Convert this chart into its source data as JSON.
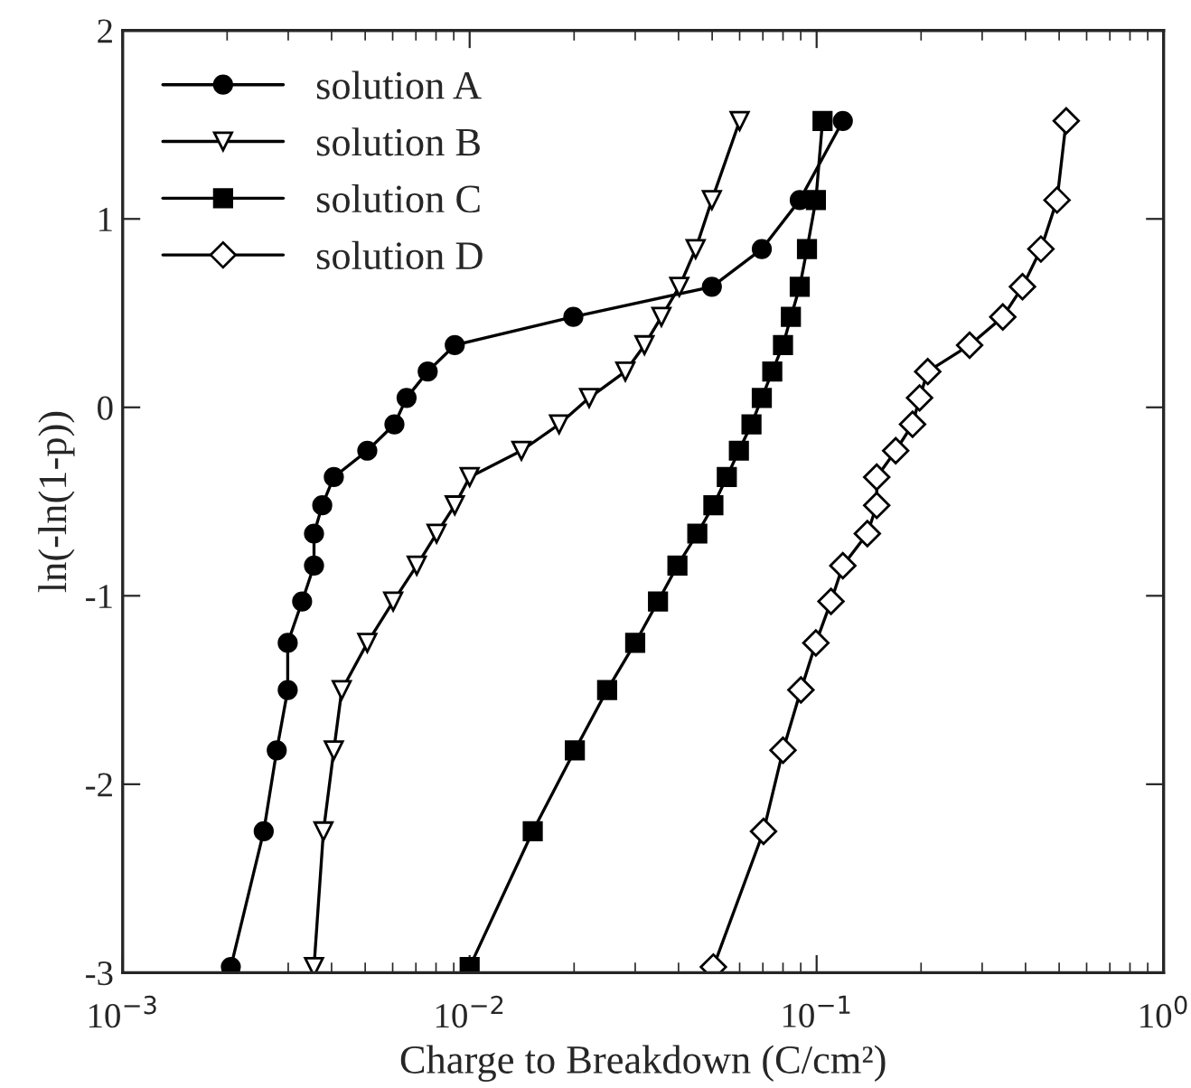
{
  "chart_data": {
    "type": "line",
    "xlabel": "Charge to Breakdown (C/cm²)",
    "ylabel": "ln(-ln(1-p))",
    "log": "x",
    "xlim": [
      0.001,
      1
    ],
    "xticks": [
      {
        "value": 0.001,
        "label": "10$^{−3}$"
      },
      {
        "value": 0.01,
        "label": "10$^{−2}$"
      },
      {
        "value": 0.1,
        "label": "10$^{−1}$"
      },
      {
        "value": 1,
        "label": "10$^{0}$"
      }
    ],
    "ylim": [
      -3,
      2
    ],
    "yticks": [
      -3,
      -2,
      -1,
      0,
      1,
      2
    ],
    "grid": false,
    "legend": "top left",
    "line_style": "solid",
    "series": [
      {
        "name": "solution A",
        "color": "#000000",
        "marker": "circle",
        "x": [
          0.00205,
          0.00255,
          0.00278,
          0.00299,
          0.00299,
          0.00329,
          0.00356,
          0.00356,
          0.00376,
          0.00406,
          0.00507,
          0.00607,
          0.00658,
          0.00757,
          0.00906,
          0.0199,
          0.0499,
          0.0695,
          0.0894,
          0.119
        ],
        "values": [
          -2.97,
          -2.25,
          -1.82,
          -1.5,
          -1.25,
          -1.03,
          -0.84,
          -0.67,
          -0.52,
          -0.37,
          -0.23,
          -0.09,
          0.05,
          0.19,
          0.33,
          0.48,
          0.64,
          0.84,
          1.1,
          1.52
        ]
      },
      {
        "name": "solution B",
        "color": "#000000",
        "marker": "triangle",
        "x": [
          0.00356,
          0.00379,
          0.00406,
          0.00428,
          0.00507,
          0.00602,
          0.00704,
          0.00803,
          0.00906,
          0.01,
          0.0141,
          0.0181,
          0.0221,
          0.0281,
          0.0319,
          0.0357,
          0.0402,
          0.0448,
          0.0499,
          0.06
        ],
        "values": [
          -2.97,
          -2.25,
          -1.82,
          -1.5,
          -1.25,
          -1.03,
          -0.84,
          -0.67,
          -0.52,
          -0.37,
          -0.23,
          -0.09,
          0.05,
          0.19,
          0.33,
          0.48,
          0.64,
          0.84,
          1.1,
          1.52
        ]
      },
      {
        "name": "solution C",
        "color": "#000000",
        "marker": "square",
        "x": [
          0.01,
          0.0152,
          0.0201,
          0.0249,
          0.03,
          0.0349,
          0.0397,
          0.0453,
          0.0504,
          0.0551,
          0.0597,
          0.0649,
          0.0695,
          0.0745,
          0.08,
          0.0843,
          0.0894,
          0.0938,
          0.0995,
          0.104
        ],
        "values": [
          -2.97,
          -2.25,
          -1.82,
          -1.5,
          -1.25,
          -1.03,
          -0.84,
          -0.67,
          -0.52,
          -0.37,
          -0.23,
          -0.09,
          0.05,
          0.19,
          0.33,
          0.48,
          0.64,
          0.84,
          1.1,
          1.52
        ]
      },
      {
        "name": "solution D",
        "color": "#000000",
        "marker": "diamond",
        "x": [
          0.0504,
          0.0703,
          0.08,
          0.0901,
          0.0995,
          0.11,
          0.119,
          0.14,
          0.149,
          0.149,
          0.169,
          0.189,
          0.198,
          0.209,
          0.276,
          0.344,
          0.392,
          0.443,
          0.493,
          0.524
        ],
        "values": [
          -2.97,
          -2.25,
          -1.82,
          -1.5,
          -1.25,
          -1.03,
          -0.84,
          -0.67,
          -0.52,
          -0.37,
          -0.23,
          -0.09,
          0.05,
          0.19,
          0.33,
          0.48,
          0.64,
          0.84,
          1.1,
          1.52
        ]
      }
    ]
  }
}
